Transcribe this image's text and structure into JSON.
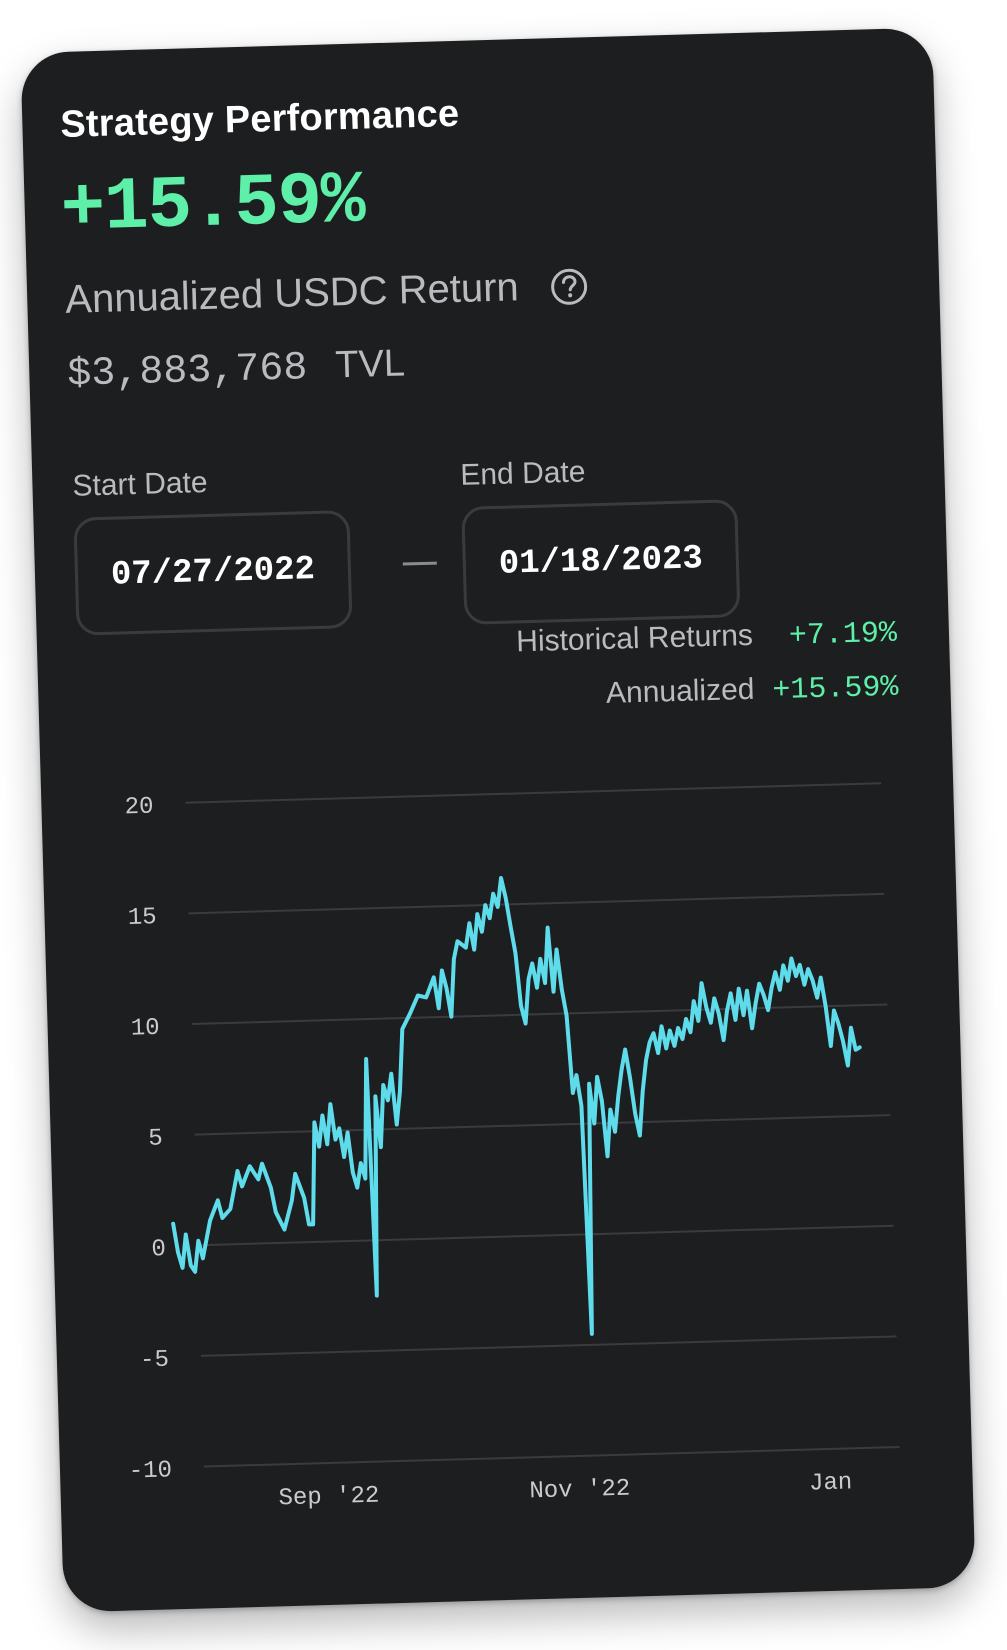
{
  "card": {
    "title": "Strategy Performance",
    "headline_return": "+15.59%",
    "subtitle": "Annualized USDC Return",
    "help_icon": "question-circle-icon",
    "tvl_value": "$3,883,768",
    "tvl_label": "TVL"
  },
  "dates": {
    "start_label": "Start Date",
    "start_value": "07/27/2022",
    "separator": "—",
    "end_label": "End Date",
    "end_value": "01/18/2023"
  },
  "stats": {
    "historical_label": "Historical Returns",
    "historical_value": "+7.19%",
    "annualized_label": "Annualized",
    "annualized_value": "+15.59%"
  },
  "colors": {
    "background": "#1d1e20",
    "accent_green": "#5ef0a8",
    "line": "#5fdcec",
    "muted_text": "#b9bbbf"
  },
  "chart_data": {
    "type": "line",
    "title": "",
    "xlabel": "",
    "ylabel": "",
    "ylim": [
      -10,
      20
    ],
    "yticks": [
      20,
      15,
      10,
      5,
      0,
      -5,
      -10
    ],
    "y_tick_labels": [
      "20",
      "15",
      "10",
      "5",
      "0",
      "-5",
      "-10"
    ],
    "grid": true,
    "xlim": [
      "2022-07-27",
      "2023-01-18"
    ],
    "x_tick_labels": [
      {
        "date": "2022-09-01",
        "label": "Sep '22"
      },
      {
        "date": "2022-11-01",
        "label": "Nov '22"
      },
      {
        "date": "2023-01-01",
        "label": "Jan"
      }
    ],
    "series": [
      {
        "color": "#5fdcec",
        "points": [
          [
            "2022-07-27",
            1.0
          ],
          [
            "2022-07-28",
            -0.3
          ],
          [
            "2022-07-29",
            -1.0
          ],
          [
            "2022-07-30",
            0.5
          ],
          [
            "2022-07-31",
            -0.9
          ],
          [
            "2022-08-01",
            -1.2
          ],
          [
            "2022-08-02",
            0.2
          ],
          [
            "2022-08-03",
            -0.6
          ],
          [
            "2022-08-05",
            1.1
          ],
          [
            "2022-08-07",
            2.0
          ],
          [
            "2022-08-08",
            1.2
          ],
          [
            "2022-08-10",
            1.6
          ],
          [
            "2022-08-12",
            3.3
          ],
          [
            "2022-08-13",
            2.6
          ],
          [
            "2022-08-15",
            3.5
          ],
          [
            "2022-08-17",
            2.9
          ],
          [
            "2022-08-18",
            3.6
          ],
          [
            "2022-08-20",
            2.5
          ],
          [
            "2022-08-21",
            1.4
          ],
          [
            "2022-08-23",
            0.6
          ],
          [
            "2022-08-25",
            1.9
          ],
          [
            "2022-08-26",
            3.1
          ],
          [
            "2022-08-28",
            2.0
          ],
          [
            "2022-08-29",
            0.8
          ],
          [
            "2022-08-30",
            0.8
          ],
          [
            "2022-08-31",
            5.4
          ],
          [
            "2022-09-01",
            4.3
          ],
          [
            "2022-09-02",
            5.7
          ],
          [
            "2022-09-03",
            4.4
          ],
          [
            "2022-09-04",
            6.2
          ],
          [
            "2022-09-05",
            4.6
          ],
          [
            "2022-09-06",
            5.1
          ],
          [
            "2022-09-07",
            3.8
          ],
          [
            "2022-09-08",
            4.9
          ],
          [
            "2022-09-09",
            3.1
          ],
          [
            "2022-09-10",
            2.4
          ],
          [
            "2022-09-11",
            3.5
          ],
          [
            "2022-09-12",
            2.8
          ],
          [
            "2022-09-13",
            8.2
          ],
          [
            "2022-09-14",
            -2.5
          ],
          [
            "2022-09-15",
            6.5
          ],
          [
            "2022-09-16",
            4.2
          ],
          [
            "2022-09-17",
            7.0
          ],
          [
            "2022-09-18",
            6.3
          ],
          [
            "2022-09-19",
            7.5
          ],
          [
            "2022-09-20",
            5.2
          ],
          [
            "2022-09-21",
            6.7
          ],
          [
            "2022-09-22",
            9.5
          ],
          [
            "2022-09-24",
            10.2
          ],
          [
            "2022-09-26",
            11.0
          ],
          [
            "2022-09-28",
            10.9
          ],
          [
            "2022-09-30",
            11.8
          ],
          [
            "2022-10-01",
            10.4
          ],
          [
            "2022-10-02",
            12.1
          ],
          [
            "2022-10-03",
            11.3
          ],
          [
            "2022-10-04",
            10.0
          ],
          [
            "2022-10-05",
            12.6
          ],
          [
            "2022-10-06",
            13.4
          ],
          [
            "2022-10-08",
            13.1
          ],
          [
            "2022-10-09",
            14.2
          ],
          [
            "2022-10-10",
            13.0
          ],
          [
            "2022-10-11",
            14.6
          ],
          [
            "2022-10-12",
            13.8
          ],
          [
            "2022-10-13",
            15.0
          ],
          [
            "2022-10-14",
            14.4
          ],
          [
            "2022-10-15",
            15.5
          ],
          [
            "2022-10-16",
            14.9
          ],
          [
            "2022-10-17",
            16.2
          ],
          [
            "2022-10-18",
            15.3
          ],
          [
            "2022-10-19",
            14.0
          ],
          [
            "2022-10-20",
            12.8
          ],
          [
            "2022-10-21",
            10.4
          ],
          [
            "2022-10-22",
            9.6
          ],
          [
            "2022-10-23",
            11.6
          ],
          [
            "2022-10-24",
            12.3
          ],
          [
            "2022-10-25",
            11.2
          ],
          [
            "2022-10-26",
            12.5
          ],
          [
            "2022-10-27",
            11.4
          ],
          [
            "2022-10-28",
            13.9
          ],
          [
            "2022-10-29",
            11.0
          ],
          [
            "2022-10-30",
            12.9
          ],
          [
            "2022-10-31",
            11.1
          ],
          [
            "2022-11-01",
            9.9
          ],
          [
            "2022-11-02",
            6.4
          ],
          [
            "2022-11-03",
            7.2
          ],
          [
            "2022-11-04",
            5.8
          ],
          [
            "2022-11-05",
            -4.5
          ],
          [
            "2022-11-06",
            6.8
          ],
          [
            "2022-11-07",
            5.0
          ],
          [
            "2022-11-08",
            7.1
          ],
          [
            "2022-11-09",
            6.0
          ],
          [
            "2022-11-10",
            3.5
          ],
          [
            "2022-11-11",
            5.6
          ],
          [
            "2022-11-12",
            4.6
          ],
          [
            "2022-11-13",
            6.2
          ],
          [
            "2022-11-14",
            7.4
          ],
          [
            "2022-11-15",
            8.3
          ],
          [
            "2022-11-16",
            7.0
          ],
          [
            "2022-11-17",
            5.4
          ],
          [
            "2022-11-18",
            4.4
          ],
          [
            "2022-11-19",
            6.4
          ],
          [
            "2022-11-20",
            7.8
          ],
          [
            "2022-11-21",
            8.6
          ],
          [
            "2022-11-22",
            9.0
          ],
          [
            "2022-11-23",
            8.1
          ],
          [
            "2022-11-24",
            9.3
          ],
          [
            "2022-11-25",
            8.3
          ],
          [
            "2022-11-26",
            9.1
          ],
          [
            "2022-11-27",
            8.4
          ],
          [
            "2022-11-28",
            9.2
          ],
          [
            "2022-11-29",
            8.7
          ],
          [
            "2022-11-30",
            9.6
          ],
          [
            "2022-12-01",
            9.0
          ],
          [
            "2022-12-02",
            10.4
          ],
          [
            "2022-12-03",
            9.5
          ],
          [
            "2022-12-04",
            11.2
          ],
          [
            "2022-12-05",
            10.1
          ],
          [
            "2022-12-06",
            9.4
          ],
          [
            "2022-12-07",
            10.5
          ],
          [
            "2022-12-08",
            9.8
          ],
          [
            "2022-12-09",
            8.6
          ],
          [
            "2022-12-10",
            9.9
          ],
          [
            "2022-12-11",
            10.7
          ],
          [
            "2022-12-12",
            9.5
          ],
          [
            "2022-12-13",
            10.9
          ],
          [
            "2022-12-14",
            9.7
          ],
          [
            "2022-12-15",
            10.8
          ],
          [
            "2022-12-16",
            9.1
          ],
          [
            "2022-12-17",
            10.2
          ],
          [
            "2022-12-18",
            11.1
          ],
          [
            "2022-12-19",
            10.6
          ],
          [
            "2022-12-20",
            9.9
          ],
          [
            "2022-12-21",
            10.9
          ],
          [
            "2022-12-22",
            11.6
          ],
          [
            "2022-12-23",
            10.8
          ],
          [
            "2022-12-24",
            11.9
          ],
          [
            "2022-12-25",
            11.2
          ],
          [
            "2022-12-26",
            12.2
          ],
          [
            "2022-12-27",
            11.4
          ],
          [
            "2022-12-28",
            11.9
          ],
          [
            "2022-12-29",
            11.0
          ],
          [
            "2022-12-30",
            11.7
          ],
          [
            "2022-12-31",
            11.2
          ],
          [
            "2023-01-01",
            10.4
          ],
          [
            "2023-01-02",
            11.3
          ],
          [
            "2023-01-03",
            10.0
          ],
          [
            "2023-01-04",
            8.2
          ],
          [
            "2023-01-05",
            9.8
          ],
          [
            "2023-01-06",
            9.2
          ],
          [
            "2023-01-07",
            8.4
          ],
          [
            "2023-01-08",
            7.3
          ],
          [
            "2023-01-09",
            9.0
          ],
          [
            "2023-01-10",
            8.0
          ],
          [
            "2023-01-11",
            8.1
          ]
        ]
      }
    ]
  }
}
